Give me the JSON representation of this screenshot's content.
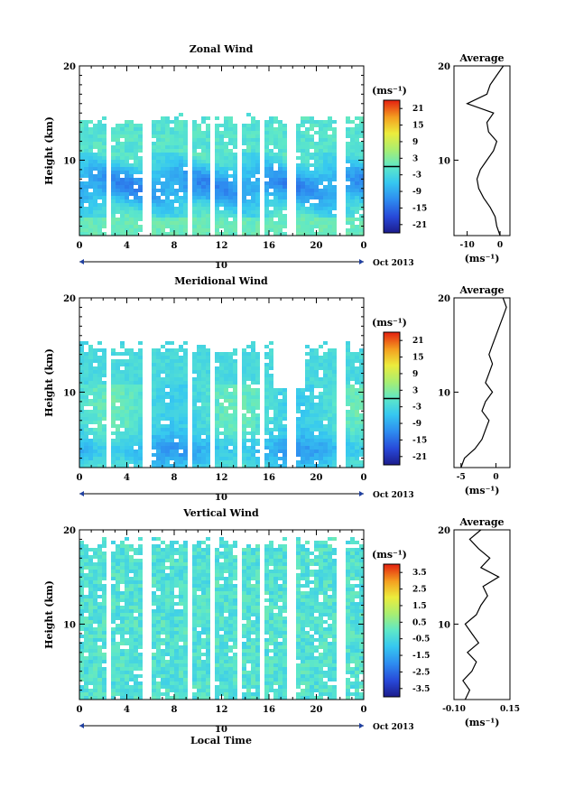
{
  "chart_data": [
    {
      "type": "heatmap",
      "title": "Zonal Wind",
      "xlabel": "",
      "ylabel": "Height (km)",
      "xlim": [
        0,
        24
      ],
      "ylim": [
        2,
        20
      ],
      "x_ticks": [
        "0",
        "4",
        "8",
        "12",
        "16",
        "20",
        "0"
      ],
      "y_ticks": [
        "10",
        "20"
      ],
      "date_day": "10",
      "date_label": "Oct 2013",
      "colorbar": {
        "unit": "(ms⁻¹)",
        "ticks": [
          "21",
          "15",
          "9",
          "3",
          "-3",
          "-9",
          "-15",
          "-21"
        ],
        "range": [
          -24,
          24
        ],
        "zero_line": 0
      },
      "profile": {
        "title": "Average",
        "xlabel": "(ms⁻¹)",
        "x_ticks": [
          "-10",
          "0"
        ],
        "xlim": [
          -14,
          3
        ],
        "y_ticks": [
          "10",
          "20"
        ],
        "height": [
          2,
          3,
          4,
          5,
          6,
          7,
          8,
          9,
          10,
          11,
          12,
          13,
          14,
          15,
          16,
          17,
          18,
          19,
          20
        ],
        "value": [
          0,
          -1,
          -1.5,
          -3,
          -5,
          -6.5,
          -7,
          -6,
          -4,
          -2,
          -1,
          -3.5,
          -4,
          -2,
          -10,
          -4,
          -3,
          -1,
          1
        ]
      }
    },
    {
      "type": "heatmap",
      "title": "Meridional Wind",
      "xlabel": "",
      "ylabel": "Height (km)",
      "xlim": [
        0,
        24
      ],
      "ylim": [
        2,
        20
      ],
      "x_ticks": [
        "0",
        "4",
        "8",
        "12",
        "16",
        "20",
        "0"
      ],
      "y_ticks": [
        "10",
        "20"
      ],
      "date_day": "10",
      "date_label": "Oct 2013",
      "colorbar": {
        "unit": "(ms⁻¹)",
        "ticks": [
          "21",
          "15",
          "9",
          "3",
          "-3",
          "-9",
          "-15",
          "-21"
        ],
        "range": [
          -24,
          24
        ],
        "zero_line": 0
      },
      "profile": {
        "title": "Average",
        "xlabel": "(ms⁻¹)",
        "x_ticks": [
          "-5",
          "0"
        ],
        "xlim": [
          -6,
          2
        ],
        "y_ticks": [
          "10",
          "20"
        ],
        "height": [
          2,
          3,
          4,
          5,
          6,
          7,
          8,
          9,
          10,
          11,
          12,
          13,
          14,
          15,
          16,
          17,
          18,
          19,
          20
        ],
        "value": [
          -5,
          -4.5,
          -3,
          -2,
          -1.5,
          -1,
          -2,
          -1.5,
          -0.5,
          -1.5,
          -1,
          -0.5,
          -1,
          -0.5,
          0,
          0.5,
          1,
          1.5,
          1
        ]
      }
    },
    {
      "type": "heatmap",
      "title": "Vertical Wind",
      "xlabel": "Local Time",
      "ylabel": "Height (km)",
      "xlim": [
        0,
        24
      ],
      "ylim": [
        2,
        20
      ],
      "x_ticks": [
        "0",
        "4",
        "8",
        "12",
        "16",
        "20",
        "0"
      ],
      "y_ticks": [
        "10",
        "20"
      ],
      "date_day": "10",
      "date_label": "Oct 2013",
      "colorbar": {
        "unit": "(ms⁻¹)",
        "ticks": [
          "3.5",
          "2.5",
          "1.5",
          "0.5",
          "-0.5",
          "-1.5",
          "-2.5",
          "-3.5"
        ],
        "range": [
          -4,
          4
        ],
        "zero_line": null
      },
      "profile": {
        "title": "Average",
        "xlabel": "(ms⁻¹)",
        "x_ticks": [
          "-0.10",
          "0.15"
        ],
        "xlim": [
          -0.1,
          0.15
        ],
        "y_ticks": [
          "10",
          "20"
        ],
        "height": [
          2,
          3,
          4,
          5,
          6,
          7,
          8,
          9,
          10,
          11,
          12,
          13,
          14,
          15,
          16,
          17,
          18,
          19,
          20
        ],
        "value": [
          -0.05,
          -0.03,
          -0.06,
          -0.02,
          0,
          -0.04,
          0.01,
          -0.02,
          -0.05,
          0,
          0.02,
          0.05,
          0.03,
          0.1,
          0.02,
          0.06,
          0.01,
          -0.03,
          0.02
        ]
      }
    }
  ]
}
